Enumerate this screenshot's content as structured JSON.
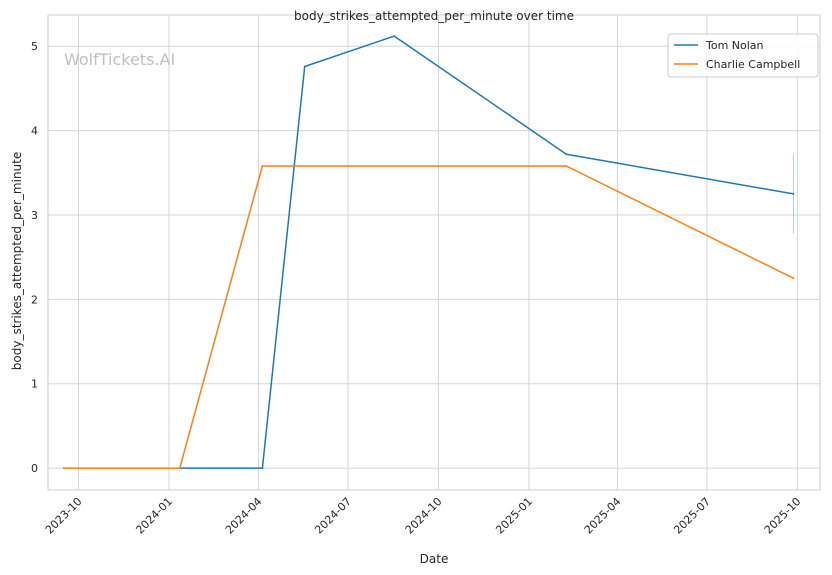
{
  "chart_data": {
    "type": "line",
    "title": "body_strikes_attempted_per_minute over time",
    "xlabel": "Date",
    "ylabel": "body_strikes_attempted_per_minute",
    "watermark": "WolfTickets.AI",
    "x_ticks": [
      "2023-10-01",
      "2024-01-01",
      "2024-04-01",
      "2024-07-01",
      "2024-10-01",
      "2025-01-01",
      "2025-04-01",
      "2025-07-01",
      "2025-10-01"
    ],
    "x_tick_labels": [
      "2023-10",
      "2024-01",
      "2024-04",
      "2024-07",
      "2024-10",
      "2025-01",
      "2025-04",
      "2025-07",
      "2025-10"
    ],
    "y_ticks": [
      0,
      1,
      2,
      3,
      4,
      5
    ],
    "xlim": [
      "2023-08-31",
      "2025-10-24"
    ],
    "ylim": [
      -0.26,
      5.37
    ],
    "grid": true,
    "legend_position": "top-right",
    "series": [
      {
        "name": "Tom Nolan",
        "color": "#1f77b4",
        "points": [
          {
            "x": "2024-01-12",
            "y": 0
          },
          {
            "x": "2024-04-05",
            "y": 0
          },
          {
            "x": "2024-05-18",
            "y": 4.76
          },
          {
            "x": "2024-08-17",
            "y": 5.12
          },
          {
            "x": "2025-02-08",
            "y": 3.72
          },
          {
            "x": "2025-09-27",
            "y": 3.25
          }
        ]
      },
      {
        "name": "Charlie Campbell",
        "color": "#ff7f0e",
        "points": [
          {
            "x": "2023-09-16",
            "y": 0
          },
          {
            "x": "2024-01-12",
            "y": 0
          },
          {
            "x": "2024-04-05",
            "y": 3.58
          },
          {
            "x": "2025-02-08",
            "y": 3.58
          },
          {
            "x": "2025-09-27",
            "y": 2.25
          }
        ]
      }
    ],
    "error_bar": {
      "x": "2025-09-27",
      "y_low": 2.78,
      "y_high": 3.72,
      "color": "#1f77b4"
    }
  }
}
